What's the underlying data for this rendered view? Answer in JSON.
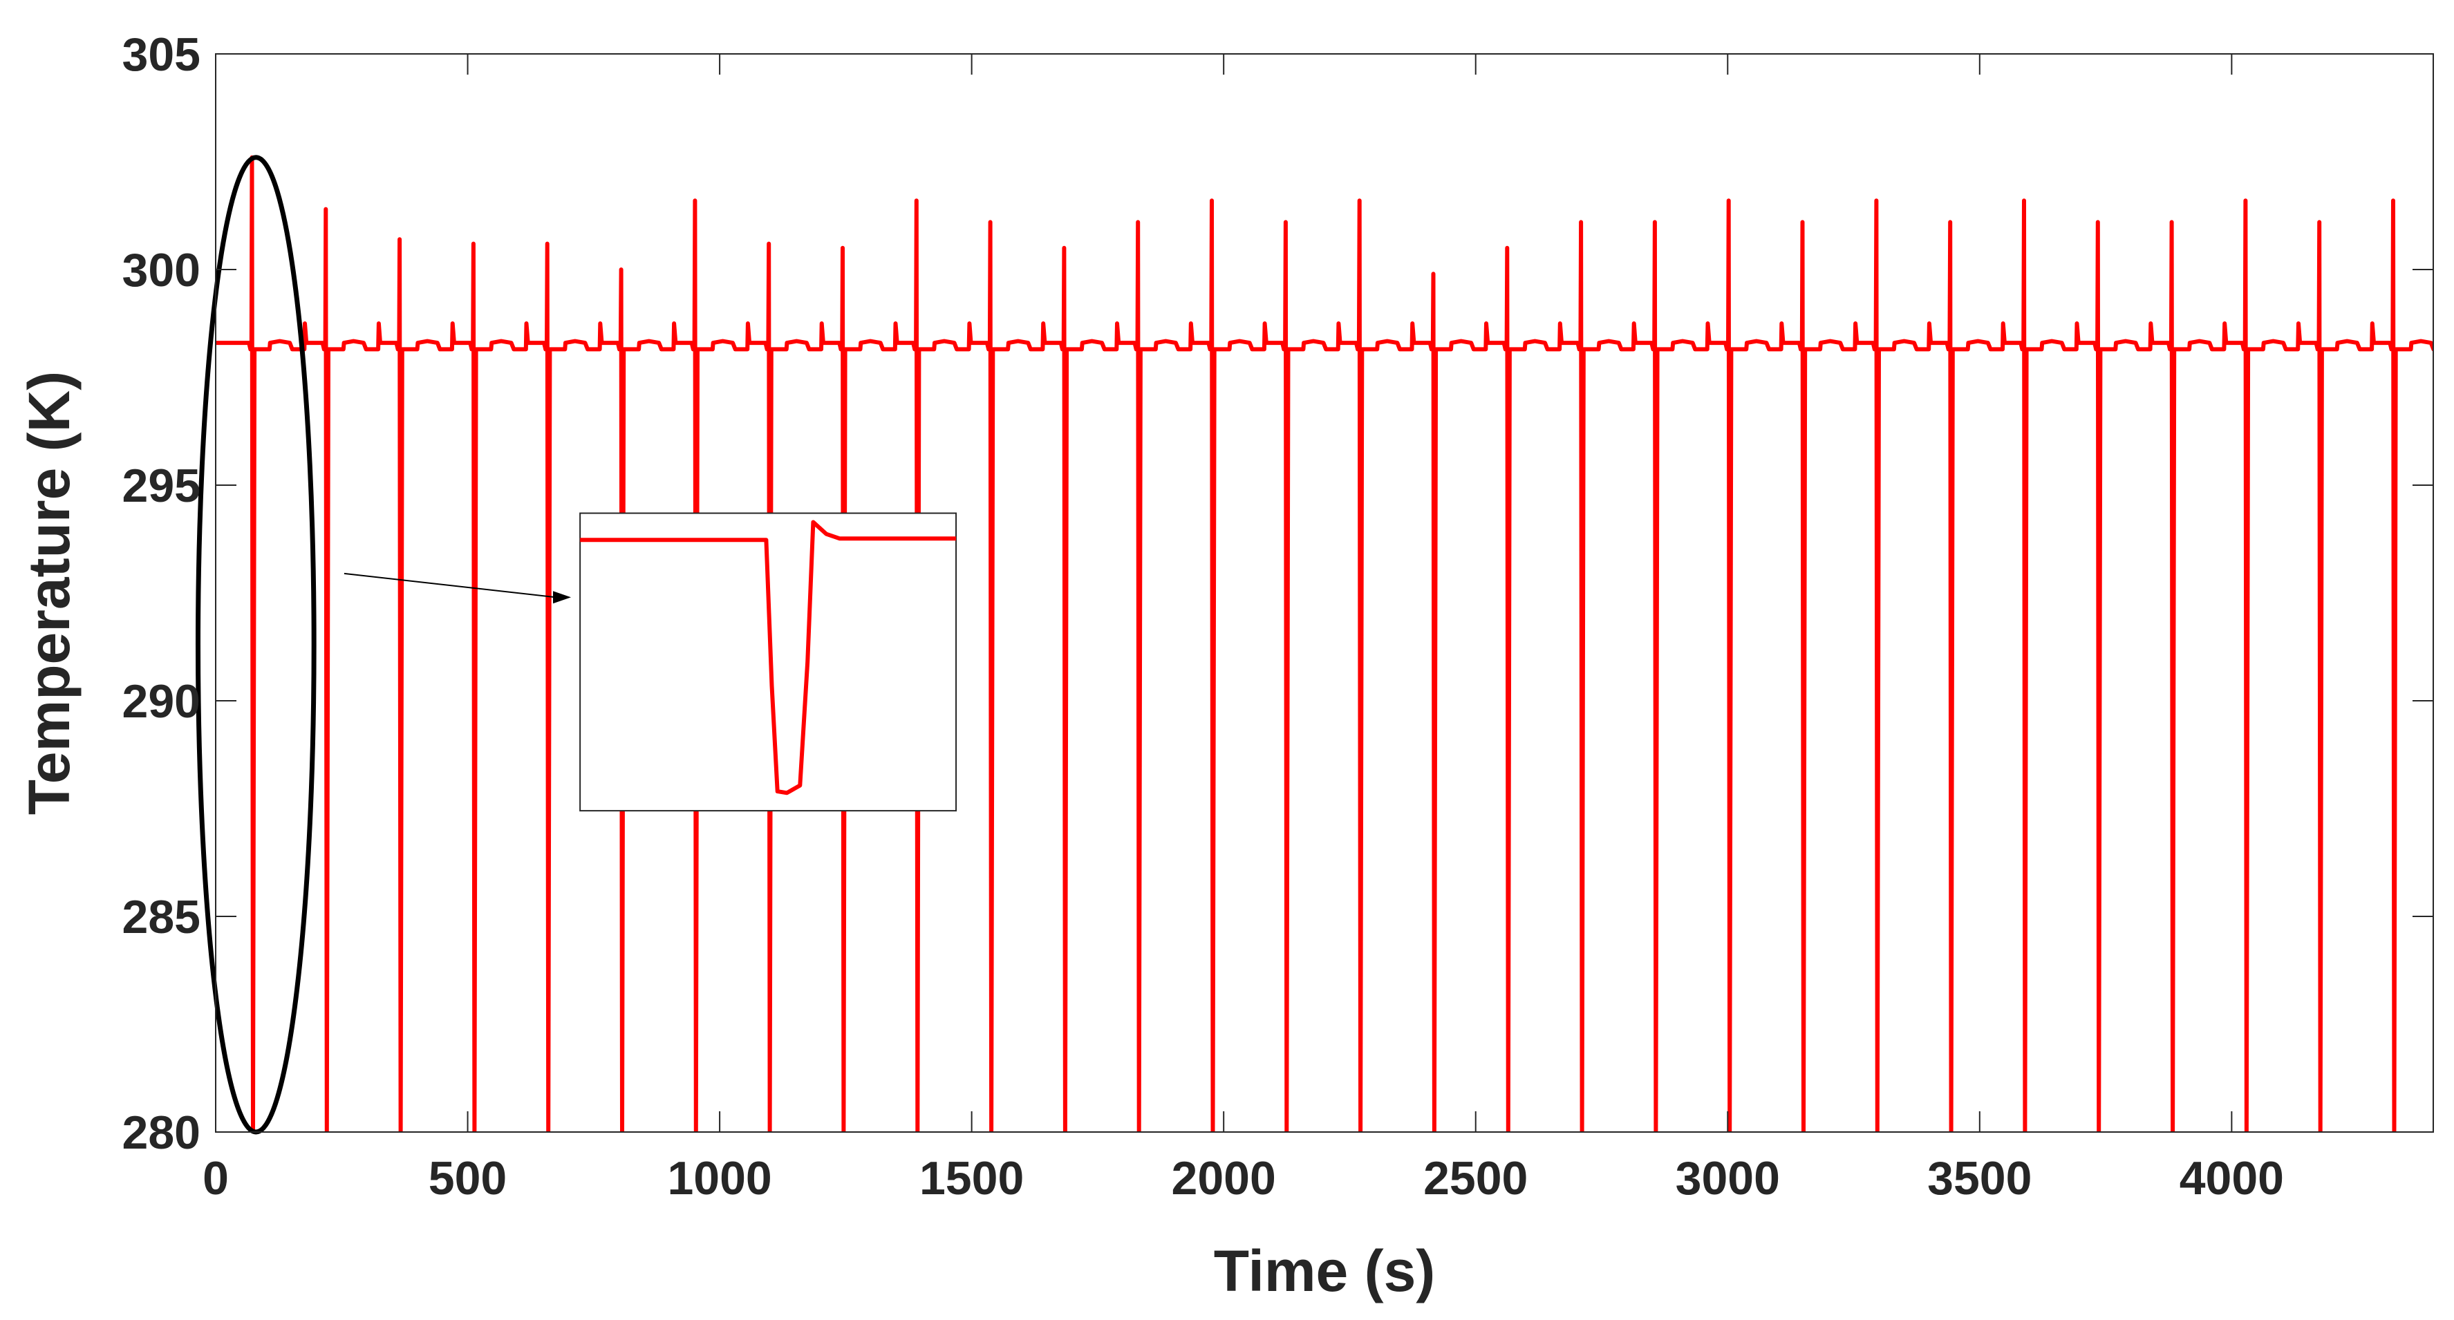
{
  "chart_data": {
    "type": "line",
    "title": "",
    "xlabel": "Time (s)",
    "ylabel": "Temperature (K)",
    "xlim": [
      0,
      4400
    ],
    "ylim": [
      280,
      305
    ],
    "xticks": [
      0,
      500,
      1000,
      1500,
      2000,
      2500,
      3000,
      3500,
      4000
    ],
    "yticks": [
      280,
      285,
      290,
      295,
      300,
      305
    ],
    "grid": false,
    "legend": "none",
    "series_color": "#ff0000",
    "annotation_color": "#000000",
    "series": [
      {
        "baseline": 298.15,
        "plateau": 298.3,
        "cycle_period": 146.5,
        "first_event": 72,
        "dip_min": 280,
        "minor_peak": 298.75,
        "peaks": [
          302.6,
          301.4,
          300.7,
          300.6,
          300.6,
          300.0,
          301.6,
          300.6,
          300.5,
          301.6,
          301.1,
          300.5,
          301.1,
          301.6,
          301.1,
          301.6,
          299.9,
          300.5,
          301.1,
          301.1,
          301.6,
          301.1,
          301.6,
          301.1,
          301.6,
          301.1,
          301.1,
          301.6,
          301.1,
          301.6
        ]
      }
    ],
    "annotations": [
      {
        "type": "ellipse",
        "center": [
          80,
          291.3
        ],
        "radius_x": 115,
        "radius_y": 11.3
      },
      {
        "type": "arrow",
        "from": [
          255,
          292.95
        ],
        "to": [
          705,
          292.4
        ]
      },
      {
        "type": "inset",
        "x_range": [
          723,
          1469
        ],
        "y_range": [
          287.45,
          294.35
        ]
      }
    ]
  }
}
